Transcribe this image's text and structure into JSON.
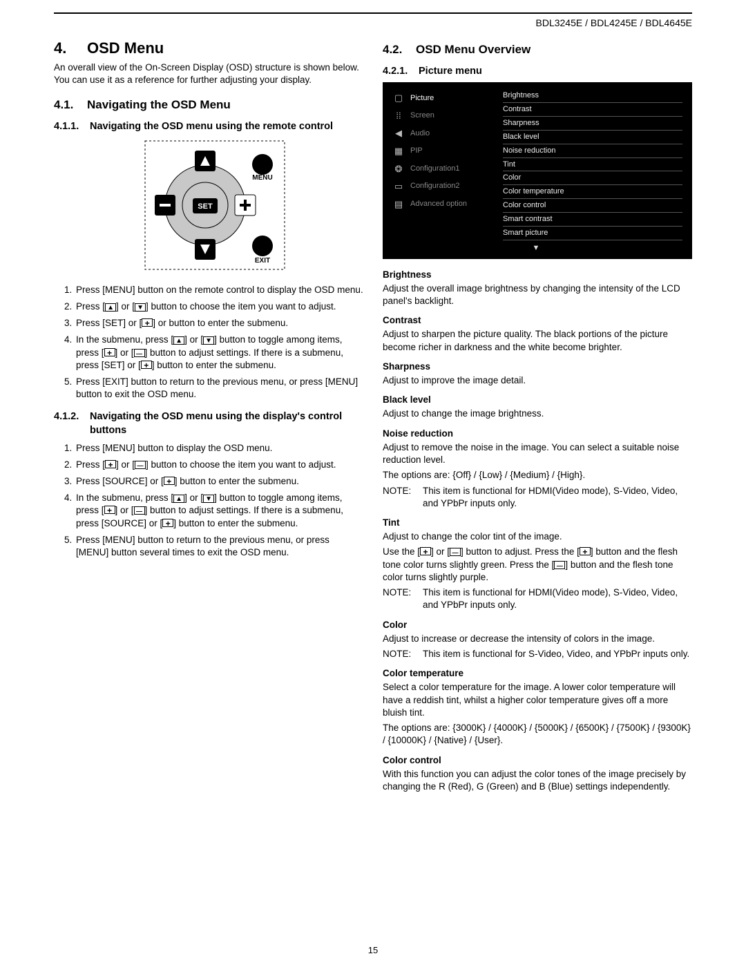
{
  "header": {
    "models": "BDL3245E / BDL4245E / BDL4645E"
  },
  "main_heading": {
    "num": "4.",
    "title": "OSD Menu"
  },
  "intro": "An overall view of the On-Screen Display (OSD) structure is shown below. You can use it as a reference for further adjusting your display.",
  "sec41": {
    "num": "4.1.",
    "title": "Navigating  the OSD Menu"
  },
  "sec411": {
    "num": "4.1.1.",
    "title": "Navigating the OSD menu using the remote control"
  },
  "remote": {
    "menu": "MENU",
    "exit": "EXIT",
    "set": "SET"
  },
  "steps_remote": [
    "Press [MENU] button on the remote control to display the OSD menu.",
    "Press [▲] or [▼] button to choose the item you want to adjust.",
    "Press [SET] or [+] or  button to enter the submenu.",
    "In the submenu, press [▲] or [▼] button to toggle among items, press [+] or [—] button to adjust settings. If there is a submenu, press [SET] or [+] button to enter the submenu.",
    "Press [EXIT] button to return to the previous menu, or press [MENU] button to exit the OSD menu."
  ],
  "sec412": {
    "num": "4.1.2.",
    "title": "Navigating the OSD menu using the display's control buttons"
  },
  "steps_display": [
    "Press [MENU] button to display the OSD menu.",
    "Press [+] or [—] button to choose the item you want to adjust.",
    "Press [SOURCE] or [+] button to enter the submenu.",
    "In the submenu, press [▲] or [▼] button to toggle among items, press [+] or [—] button to adjust settings. If there is a submenu, press [SOURCE] or [+] button to enter the submenu.",
    "Press [MENU] button to return to the previous menu, or press [MENU] button several times to exit the OSD menu."
  ],
  "sec42": {
    "num": "4.2.",
    "title": "OSD Menu Overview"
  },
  "sec421": {
    "num": "4.2.1.",
    "title": "Picture menu"
  },
  "osd": {
    "categories": [
      {
        "icon": "▢",
        "label": "Picture",
        "active": true
      },
      {
        "icon": "⁞⁞",
        "label": "Screen",
        "active": false
      },
      {
        "icon": "◀",
        "label": "Audio",
        "active": false
      },
      {
        "icon": "▦",
        "label": "PIP",
        "active": false
      },
      {
        "icon": "❂",
        "label": "Configuration1",
        "active": false
      },
      {
        "icon": "▭",
        "label": "Configuration2",
        "active": false
      },
      {
        "icon": "▤",
        "label": "Advanced option",
        "active": false
      }
    ],
    "options": [
      "Brightness",
      "Contrast",
      "Sharpness",
      "Black level",
      "Noise reduction",
      "Tint",
      "Color",
      "Color temperature",
      "Color control",
      "Smart contrast",
      "Smart picture"
    ],
    "down_arrow": "▼",
    "colors": {
      "bg": "#000000",
      "text": "#eeeeee",
      "muted": "#888888",
      "divider": "#555555"
    }
  },
  "items": {
    "brightness": {
      "hd": "Brightness",
      "body": "Adjust the overall image brightness by changing the intensity of the LCD panel's backlight."
    },
    "contrast": {
      "hd": "Contrast",
      "body": "Adjust to sharpen the picture quality. The black portions of the picture become richer in darkness and the white become brighter."
    },
    "sharpness": {
      "hd": "Sharpness",
      "body": "Adjust to improve the image detail."
    },
    "blacklevel": {
      "hd": "Black level",
      "body": "Adjust to change the image brightness."
    },
    "noise": {
      "hd": "Noise reduction",
      "body": "Adjust to remove the noise in the image. You can select a suitable noise reduction level.",
      "opts": "The options are: {Off} / {Low} / {Medium} / {High}.",
      "note_lbl": "NOTE:",
      "note": "This item is functional for HDMI(Video mode), S-Video, Video, and YPbPr inputs only."
    },
    "tint": {
      "hd": "Tint",
      "body": "Adjust to change the color tint of the image.",
      "body2": "Use the [+] or [—] button to adjust. Press the [+] button and the flesh tone color turns slightly green. Press the [—] button and the flesh tone color turns slightly purple.",
      "note_lbl": "NOTE:",
      "note": "This item is functional for HDMI(Video mode), S-Video, Video, and YPbPr inputs only."
    },
    "color": {
      "hd": "Color",
      "body": "Adjust to increase or decrease the intensity of colors in the image.",
      "note_lbl": "NOTE:",
      "note": "This item is functional for S-Video, Video, and YPbPr inputs only."
    },
    "colortemp": {
      "hd": "Color temperature",
      "body": "Select a color temperature for the image. A lower color temperature will have a reddish tint, whilst a higher color temperature gives off a more bluish tint.",
      "opts": "The options are: {3000K} / {4000K} / {5000K} / {6500K} / {7500K} / {9300K} / {10000K} / {Native} / {User}."
    },
    "colorctrl": {
      "hd": "Color control",
      "body": "With this function you can adjust the color tones of the image precisely by changing the R (Red), G (Green) and B (Blue) settings independently."
    }
  },
  "page_number": "15"
}
